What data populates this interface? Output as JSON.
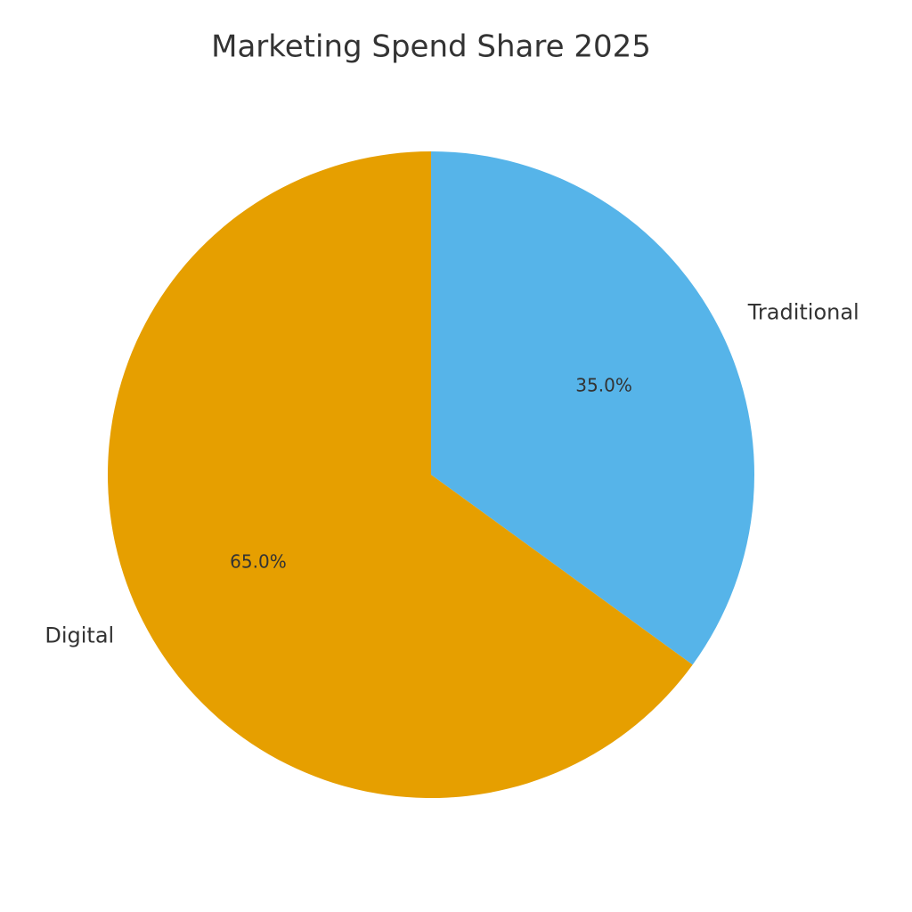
{
  "chart_data": {
    "type": "pie",
    "title": "Marketing Spend Share 2025",
    "categories": [
      "Traditional",
      "Digital"
    ],
    "values": [
      35,
      65
    ],
    "value_labels": [
      "35.0%",
      "65.0%"
    ],
    "colors": [
      "#56b4e9",
      "#e69f00"
    ]
  }
}
